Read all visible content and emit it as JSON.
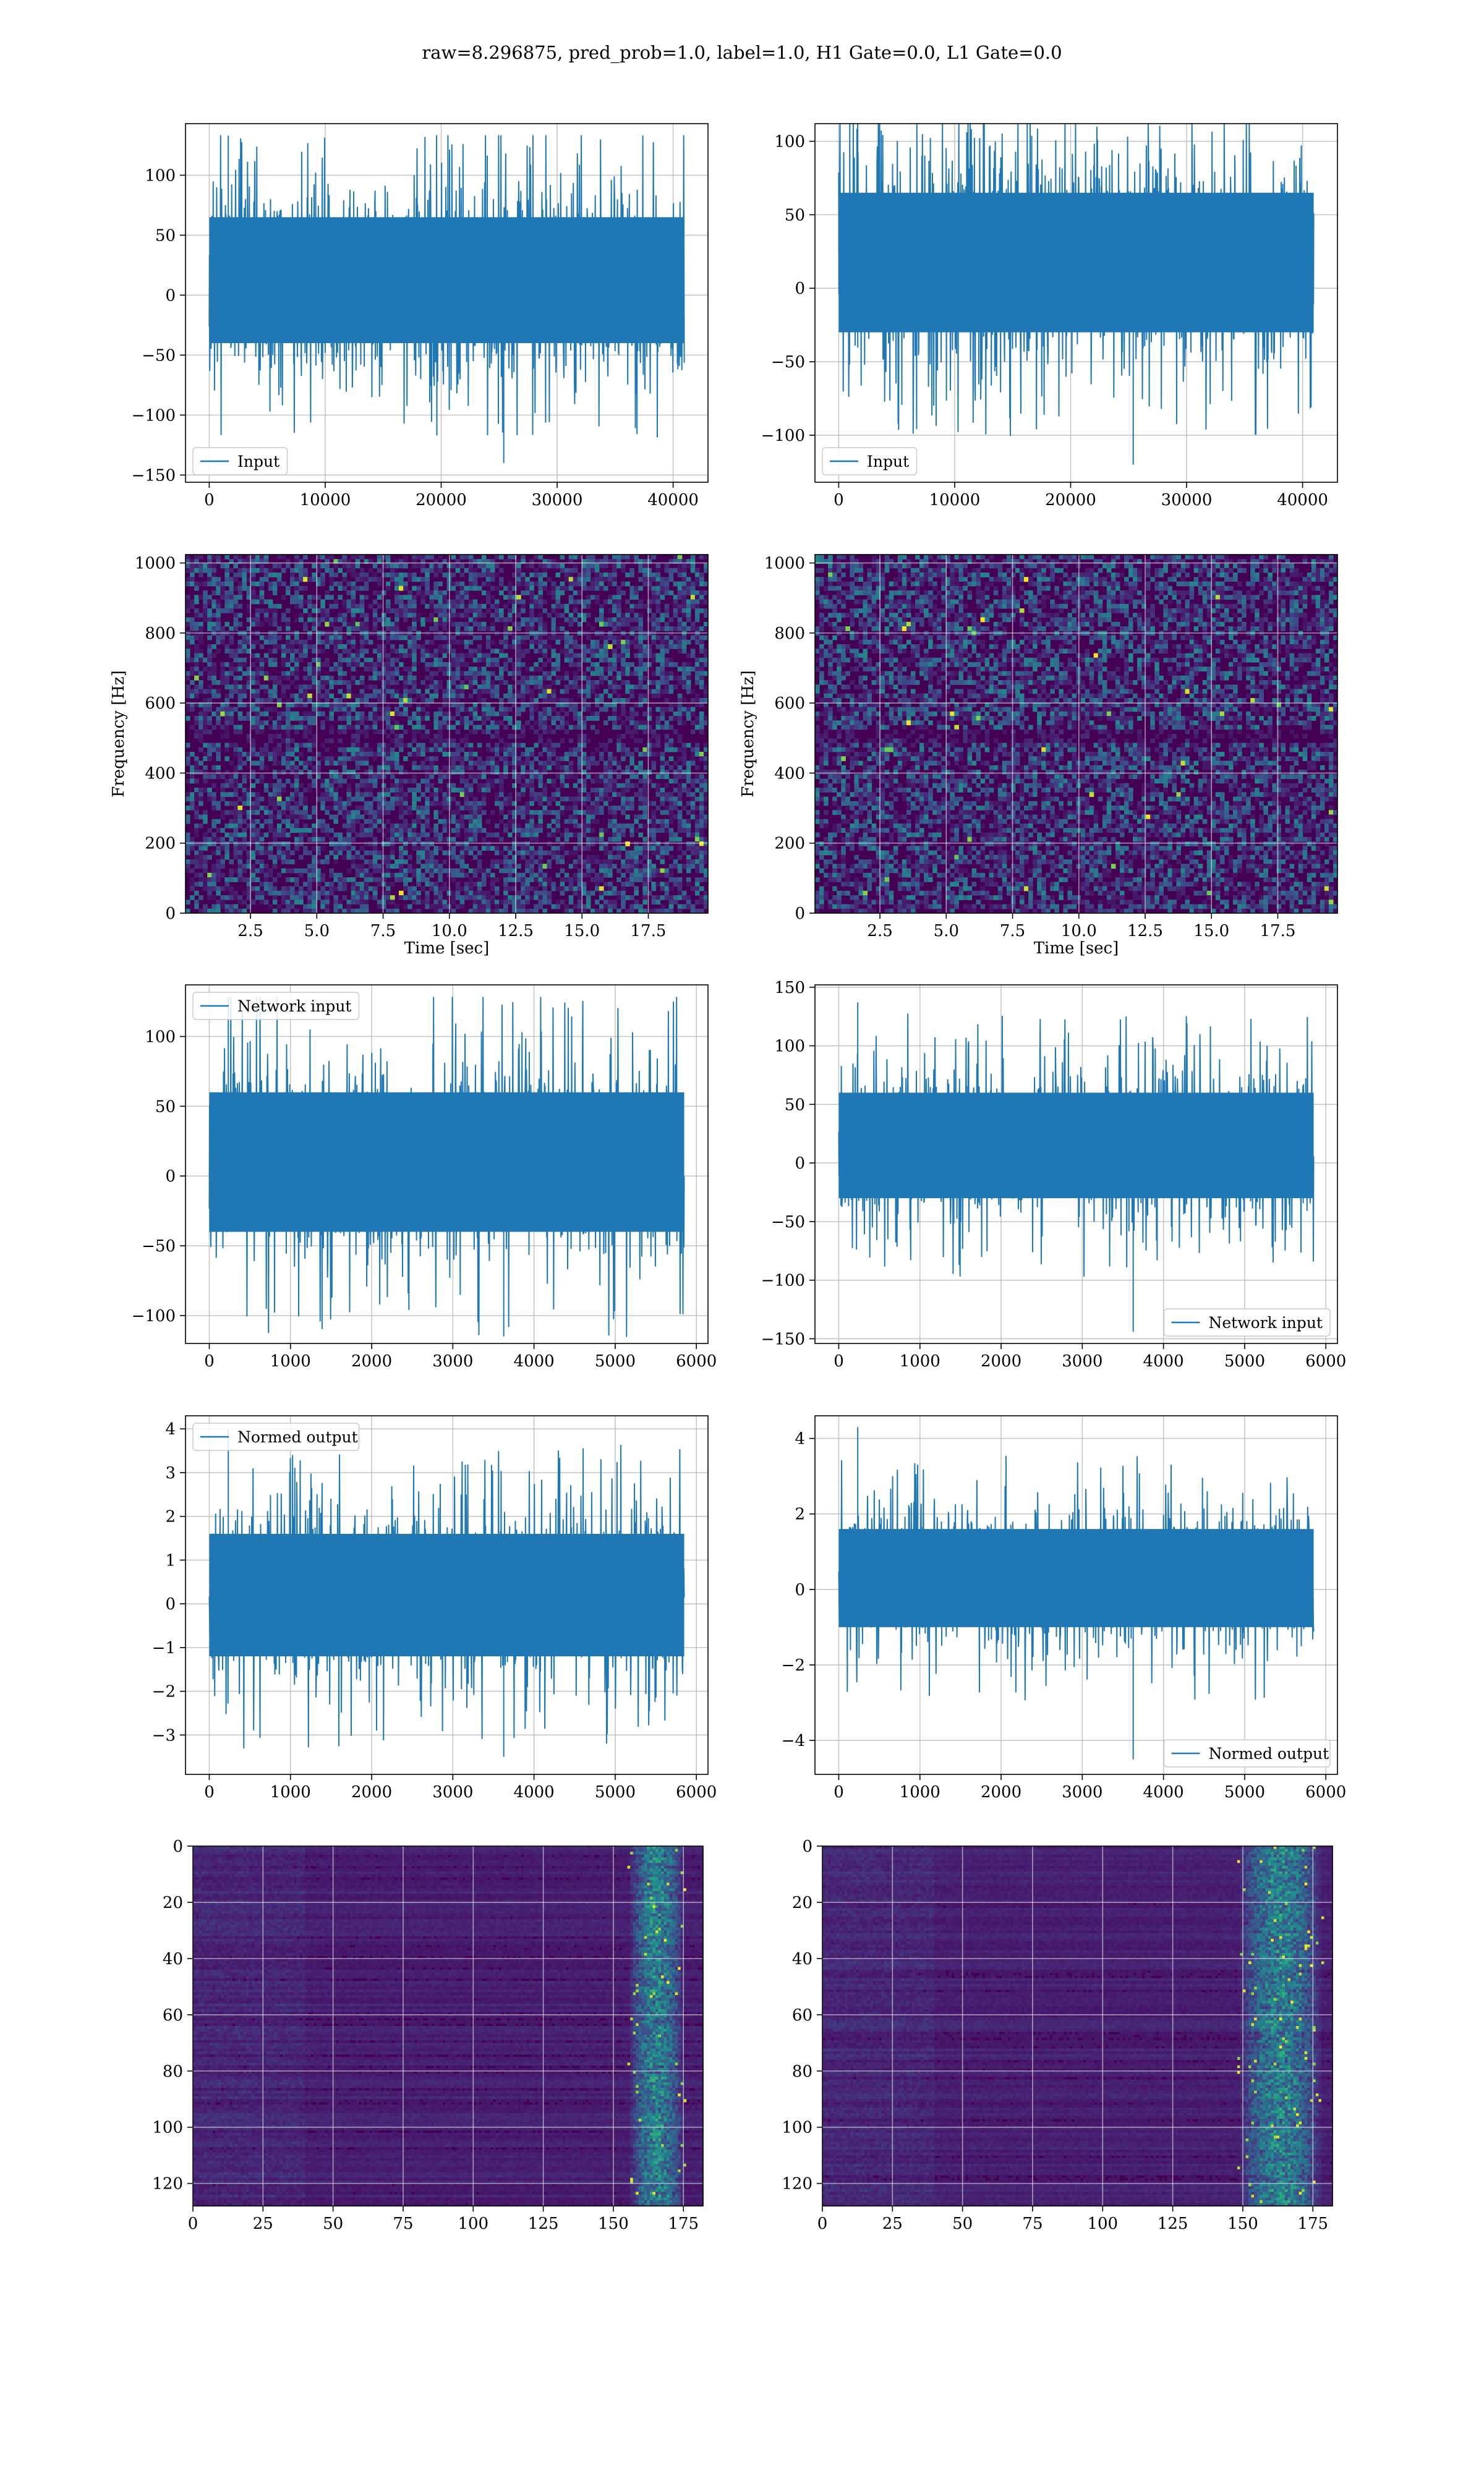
{
  "figure": {
    "suptitle": "raw=8.296875, pred_prob=1.0, label=1.0, H1 Gate=0.0, L1 Gate=0.0",
    "colors": {
      "line": "#1f77b4",
      "grid": "#b0b0b0",
      "viridis_dark": "#440154",
      "viridis_mid": "#21918c",
      "viridis_bright": "#fde725"
    }
  },
  "chart_data": [
    {
      "id": "h1-input",
      "type": "line",
      "column": "left",
      "row": 1,
      "series": [
        {
          "name": "Input",
          "x_range": [
            0,
            40960
          ],
          "envelope_typical": [
            -40,
            65
          ],
          "peaks_max": 133,
          "peaks_min": -140
        }
      ],
      "xlim": [
        -2048,
        43008
      ],
      "ylim": [
        -156,
        143
      ],
      "xticks": [
        0,
        10000,
        20000,
        30000,
        40000
      ],
      "xticklabels": [
        "0",
        "10000",
        "20000",
        "30000",
        "40000"
      ],
      "yticks": [
        -150,
        -100,
        -50,
        0,
        50,
        100
      ],
      "yticklabels": [
        "−150",
        "−100",
        "−50",
        "0",
        "50",
        "100"
      ],
      "legend": {
        "label": "Input",
        "loc": "lower-left"
      },
      "grid": true,
      "seed": 11,
      "n": 1800
    },
    {
      "id": "l1-input",
      "type": "line",
      "column": "right",
      "row": 1,
      "series": [
        {
          "name": "Input",
          "x_range": [
            0,
            40960
          ],
          "envelope_typical": [
            -30,
            65
          ],
          "peaks_max": 112,
          "peaks_min": -120
        }
      ],
      "xlim": [
        -2048,
        43008
      ],
      "ylim": [
        -132,
        112
      ],
      "xticks": [
        0,
        10000,
        20000,
        30000,
        40000
      ],
      "xticklabels": [
        "0",
        "10000",
        "20000",
        "30000",
        "40000"
      ],
      "yticks": [
        -100,
        -50,
        0,
        50,
        100
      ],
      "yticklabels": [
        "−100",
        "−50",
        "0",
        "50",
        "100"
      ],
      "legend": {
        "label": "Input",
        "loc": "lower-left"
      },
      "grid": true,
      "seed": 23,
      "n": 1800
    },
    {
      "id": "h1-spectrogram",
      "type": "heatmap",
      "column": "left",
      "row": 2,
      "xlim": [
        0.05,
        19.75
      ],
      "ylim": [
        0,
        1024
      ],
      "xticks": [
        2.5,
        5,
        7.5,
        10,
        12.5,
        15,
        17.5
      ],
      "xticklabels": [
        "2.5",
        "5.0",
        "7.5",
        "10.0",
        "12.5",
        "15.0",
        "17.5"
      ],
      "yticks": [
        0,
        200,
        400,
        600,
        800,
        1000
      ],
      "yticklabels": [
        "0",
        "200",
        "400",
        "600",
        "800",
        "1000"
      ],
      "xlabel": "Time [sec]",
      "ylabel": "Frequency [Hz]",
      "grid": true,
      "seed": 31,
      "cols": 120,
      "rows": 80
    },
    {
      "id": "l1-spectrogram",
      "type": "heatmap",
      "column": "right",
      "row": 2,
      "xlim": [
        0.05,
        19.75
      ],
      "ylim": [
        0,
        1024
      ],
      "xticks": [
        2.5,
        5,
        7.5,
        10,
        12.5,
        15,
        17.5
      ],
      "xticklabels": [
        "2.5",
        "5.0",
        "7.5",
        "10.0",
        "12.5",
        "15.0",
        "17.5"
      ],
      "yticks": [
        0,
        200,
        400,
        600,
        800,
        1000
      ],
      "yticklabels": [
        "0",
        "200",
        "400",
        "600",
        "800",
        "1000"
      ],
      "xlabel": "Time [sec]",
      "ylabel": "Frequency [Hz]",
      "grid": true,
      "seed": 47,
      "cols": 120,
      "rows": 80
    },
    {
      "id": "h1-network-input",
      "type": "line",
      "column": "left",
      "row": 3,
      "series": [
        {
          "name": "Network input",
          "x_range": [
            0,
            5850
          ],
          "envelope_typical": [
            -40,
            60
          ],
          "peaks_max": 128,
          "peaks_min": -115
        }
      ],
      "xlim": [
        -293,
        6143
      ],
      "ylim": [
        -120,
        137
      ],
      "xticks": [
        0,
        1000,
        2000,
        3000,
        4000,
        5000,
        6000
      ],
      "xticklabels": [
        "0",
        "1000",
        "2000",
        "3000",
        "4000",
        "5000",
        "6000"
      ],
      "yticks": [
        -100,
        -50,
        0,
        50,
        100
      ],
      "yticklabels": [
        "−100",
        "−50",
        "0",
        "50",
        "100"
      ],
      "legend": {
        "label": "Network input",
        "loc": "upper-left"
      },
      "grid": true,
      "seed": 59,
      "n": 1500
    },
    {
      "id": "l1-network-input",
      "type": "line",
      "column": "right",
      "row": 3,
      "series": [
        {
          "name": "Network input",
          "x_range": [
            0,
            5850
          ],
          "envelope_typical": [
            -30,
            60
          ],
          "peaks_max": 137,
          "peaks_min": -144
        }
      ],
      "xlim": [
        -293,
        6143
      ],
      "ylim": [
        -154,
        152
      ],
      "xticks": [
        0,
        1000,
        2000,
        3000,
        4000,
        5000,
        6000
      ],
      "xticklabels": [
        "0",
        "1000",
        "2000",
        "3000",
        "4000",
        "5000",
        "6000"
      ],
      "yticks": [
        -150,
        -100,
        -50,
        0,
        50,
        100,
        150
      ],
      "yticklabels": [
        "−150",
        "−100",
        "−50",
        "0",
        "50",
        "100",
        "150"
      ],
      "legend": {
        "label": "Network input",
        "loc": "lower-right"
      },
      "grid": true,
      "seed": 71,
      "n": 1500
    },
    {
      "id": "h1-normed-output",
      "type": "line",
      "column": "left",
      "row": 4,
      "series": [
        {
          "name": "Normed output",
          "x_range": [
            0,
            5850
          ],
          "envelope_typical": [
            -1.2,
            1.6
          ],
          "peaks_max": 4.0,
          "peaks_min": -3.5
        }
      ],
      "xlim": [
        -293,
        6143
      ],
      "ylim": [
        -3.9,
        4.3
      ],
      "xticks": [
        0,
        1000,
        2000,
        3000,
        4000,
        5000,
        6000
      ],
      "xticklabels": [
        "0",
        "1000",
        "2000",
        "3000",
        "4000",
        "5000",
        "6000"
      ],
      "yticks": [
        -3,
        -2,
        -1,
        0,
        1,
        2,
        3,
        4
      ],
      "yticklabels": [
        "−3",
        "−2",
        "−1",
        "0",
        "1",
        "2",
        "3",
        "4"
      ],
      "legend": {
        "label": "Normed output",
        "loc": "upper-left"
      },
      "grid": true,
      "seed": 83,
      "n": 1500
    },
    {
      "id": "l1-normed-output",
      "type": "line",
      "column": "right",
      "row": 4,
      "series": [
        {
          "name": "Normed output",
          "x_range": [
            0,
            5850
          ],
          "envelope_typical": [
            -1.0,
            1.6
          ],
          "peaks_max": 4.3,
          "peaks_min": -4.5
        }
      ],
      "xlim": [
        -293,
        6143
      ],
      "ylim": [
        -4.9,
        4.6
      ],
      "xticks": [
        0,
        1000,
        2000,
        3000,
        4000,
        5000,
        6000
      ],
      "xticklabels": [
        "0",
        "1000",
        "2000",
        "3000",
        "4000",
        "5000",
        "6000"
      ],
      "yticks": [
        -4,
        -2,
        0,
        2,
        4
      ],
      "yticklabels": [
        "−4",
        "−2",
        "0",
        "2",
        "4"
      ],
      "legend": {
        "label": "Normed output",
        "loc": "lower-right"
      },
      "grid": true,
      "seed": 97,
      "n": 1500
    },
    {
      "id": "h1-feature-map",
      "type": "heatmap",
      "column": "left",
      "row": 5,
      "xlim": [
        0,
        182
      ],
      "ylim": [
        128,
        0
      ],
      "xticks": [
        0,
        25,
        50,
        75,
        100,
        125,
        150,
        175
      ],
      "xticklabels": [
        "0",
        "25",
        "50",
        "75",
        "100",
        "125",
        "150",
        "175"
      ],
      "yticks": [
        0,
        20,
        40,
        60,
        80,
        100,
        120
      ],
      "yticklabels": [
        "0",
        "20",
        "40",
        "60",
        "80",
        "100",
        "120"
      ],
      "grid": true,
      "seed": 109,
      "cols": 182,
      "rows": 128,
      "active_columns": [
        155,
        175
      ]
    },
    {
      "id": "l1-feature-map",
      "type": "heatmap",
      "column": "right",
      "row": 5,
      "xlim": [
        0,
        182
      ],
      "ylim": [
        128,
        0
      ],
      "xticks": [
        0,
        25,
        50,
        75,
        100,
        125,
        150,
        175
      ],
      "xticklabels": [
        "0",
        "25",
        "50",
        "75",
        "100",
        "125",
        "150",
        "175"
      ],
      "yticks": [
        0,
        20,
        40,
        60,
        80,
        100,
        120
      ],
      "yticklabels": [
        "0",
        "20",
        "40",
        "60",
        "80",
        "100",
        "120"
      ],
      "grid": true,
      "seed": 127,
      "cols": 182,
      "rows": 128,
      "active_columns": [
        148,
        178
      ]
    }
  ]
}
